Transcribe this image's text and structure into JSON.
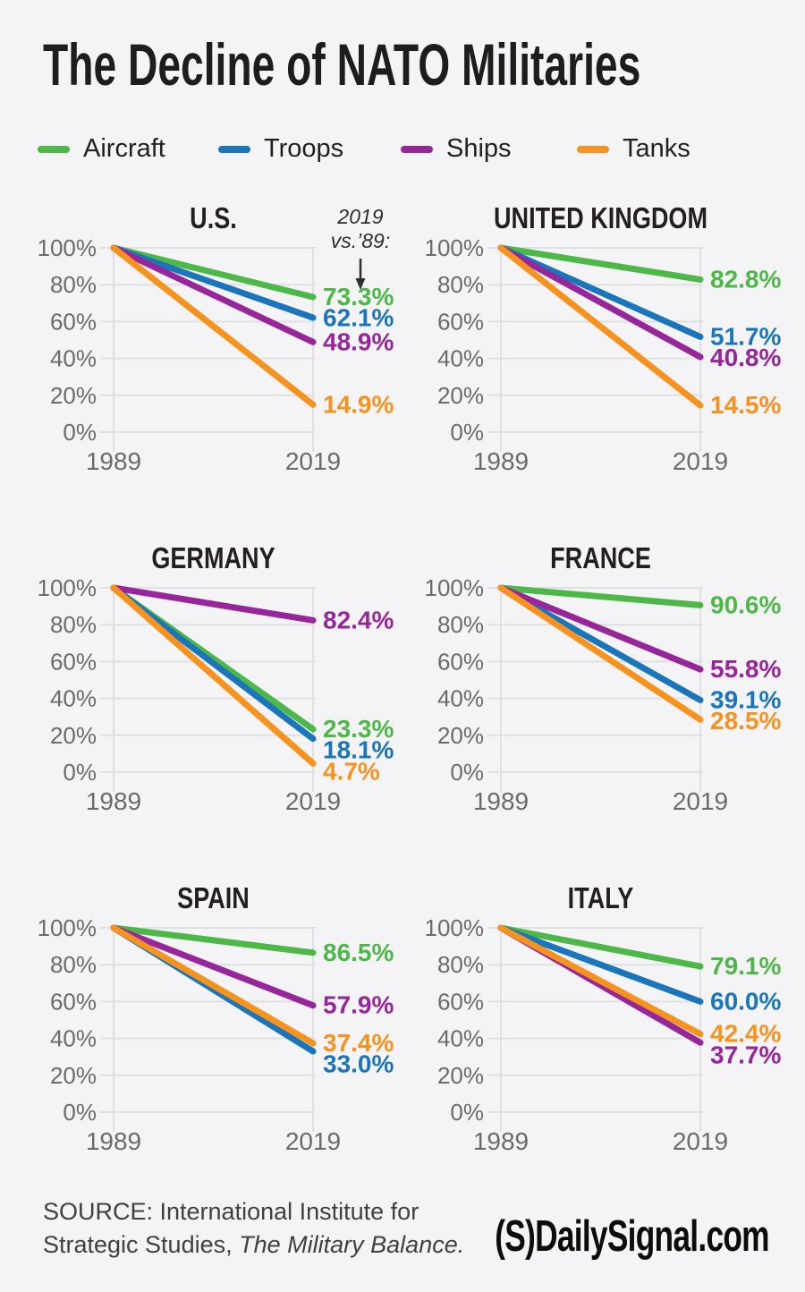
{
  "page": {
    "background_color": "#f4f4f6"
  },
  "header": {
    "title": "The Decline of NATO Militaries"
  },
  "legend": {
    "items": [
      {
        "label": "Aircraft",
        "color": "#4db848"
      },
      {
        "label": "Troops",
        "color": "#1b75bb"
      },
      {
        "label": "Ships",
        "color": "#98269b"
      },
      {
        "label": "Tanks",
        "color": "#f6921e"
      }
    ]
  },
  "chart_data": [
    {
      "type": "line",
      "title": "U.S.",
      "x_labels": [
        "1989",
        "2019"
      ],
      "ylim": [
        0,
        100
      ],
      "y_ticks": [
        100,
        80,
        60,
        40,
        20,
        0
      ],
      "y_tick_labels": [
        "100%",
        "80%",
        "60%",
        "40%",
        "20%",
        "0%"
      ],
      "grid": true,
      "annotation": {
        "line1": "2019",
        "line2": "vs.’89:"
      },
      "series": [
        {
          "name": "Aircraft",
          "values": [
            100,
            73.3
          ],
          "end_label": "73.3%"
        },
        {
          "name": "Troops",
          "values": [
            100,
            62.1
          ],
          "end_label": "62.1%"
        },
        {
          "name": "Ships",
          "values": [
            100,
            48.9
          ],
          "end_label": "48.9%"
        },
        {
          "name": "Tanks",
          "values": [
            100,
            14.9
          ],
          "end_label": "14.9%"
        }
      ]
    },
    {
      "type": "line",
      "title": "UNITED KINGDOM",
      "x_labels": [
        "1989",
        "2019"
      ],
      "ylim": [
        0,
        100
      ],
      "y_ticks": [
        100,
        80,
        60,
        40,
        20,
        0
      ],
      "y_tick_labels": [
        "100%",
        "80%",
        "60%",
        "40%",
        "20%",
        "0%"
      ],
      "grid": true,
      "series": [
        {
          "name": "Aircraft",
          "values": [
            100,
            82.8
          ],
          "end_label": "82.8%"
        },
        {
          "name": "Troops",
          "values": [
            100,
            51.7
          ],
          "end_label": "51.7%"
        },
        {
          "name": "Ships",
          "values": [
            100,
            40.8
          ],
          "end_label": "40.8%"
        },
        {
          "name": "Tanks",
          "values": [
            100,
            14.5
          ],
          "end_label": "14.5%"
        }
      ]
    },
    {
      "type": "line",
      "title": "GERMANY",
      "x_labels": [
        "1989",
        "2019"
      ],
      "ylim": [
        0,
        100
      ],
      "y_ticks": [
        100,
        80,
        60,
        40,
        20,
        0
      ],
      "y_tick_labels": [
        "100%",
        "80%",
        "60%",
        "40%",
        "20%",
        "0%"
      ],
      "grid": true,
      "series": [
        {
          "name": "Aircraft",
          "values": [
            100,
            23.3
          ],
          "end_label": "23.3%"
        },
        {
          "name": "Troops",
          "values": [
            100,
            18.1
          ],
          "end_label": "18.1%"
        },
        {
          "name": "Ships",
          "values": [
            100,
            82.4
          ],
          "end_label": "82.4%"
        },
        {
          "name": "Tanks",
          "values": [
            100,
            4.7
          ],
          "end_label": "4.7%"
        }
      ]
    },
    {
      "type": "line",
      "title": "FRANCE",
      "x_labels": [
        "1989",
        "2019"
      ],
      "ylim": [
        0,
        100
      ],
      "y_ticks": [
        100,
        80,
        60,
        40,
        20,
        0
      ],
      "y_tick_labels": [
        "100%",
        "80%",
        "60%",
        "40%",
        "20%",
        "0%"
      ],
      "grid": true,
      "series": [
        {
          "name": "Aircraft",
          "values": [
            100,
            90.6
          ],
          "end_label": "90.6%"
        },
        {
          "name": "Troops",
          "values": [
            100,
            39.1
          ],
          "end_label": "39.1%"
        },
        {
          "name": "Ships",
          "values": [
            100,
            55.8
          ],
          "end_label": "55.8%"
        },
        {
          "name": "Tanks",
          "values": [
            100,
            28.5
          ],
          "end_label": "28.5%"
        }
      ]
    },
    {
      "type": "line",
      "title": "SPAIN",
      "x_labels": [
        "1989",
        "2019"
      ],
      "ylim": [
        0,
        100
      ],
      "y_ticks": [
        100,
        80,
        60,
        40,
        20,
        0
      ],
      "y_tick_labels": [
        "100%",
        "80%",
        "60%",
        "40%",
        "20%",
        "0%"
      ],
      "grid": true,
      "series": [
        {
          "name": "Aircraft",
          "values": [
            100,
            86.5
          ],
          "end_label": "86.5%"
        },
        {
          "name": "Troops",
          "values": [
            100,
            33.0
          ],
          "end_label": "33.0%"
        },
        {
          "name": "Ships",
          "values": [
            100,
            57.9
          ],
          "end_label": "57.9%"
        },
        {
          "name": "Tanks",
          "values": [
            100,
            37.4
          ],
          "end_label": "37.4%"
        }
      ]
    },
    {
      "type": "line",
      "title": "ITALY",
      "x_labels": [
        "1989",
        "2019"
      ],
      "ylim": [
        0,
        100
      ],
      "y_ticks": [
        100,
        80,
        60,
        40,
        20,
        0
      ],
      "y_tick_labels": [
        "100%",
        "80%",
        "60%",
        "40%",
        "20%",
        "0%"
      ],
      "grid": true,
      "series": [
        {
          "name": "Aircraft",
          "values": [
            100,
            79.1
          ],
          "end_label": "79.1%"
        },
        {
          "name": "Troops",
          "values": [
            100,
            60.0
          ],
          "end_label": "60.0%"
        },
        {
          "name": "Ships",
          "values": [
            100,
            37.7
          ],
          "end_label": "37.7%"
        },
        {
          "name": "Tanks",
          "values": [
            100,
            42.4
          ],
          "end_label": "42.4%"
        }
      ]
    }
  ],
  "footer": {
    "source_line1": "SOURCE: International Institute for",
    "source_line2_regular": "Strategic Studies, ",
    "source_line2_italic": "The Military Balance.",
    "logo_text": "(S)DailySignal.com"
  }
}
